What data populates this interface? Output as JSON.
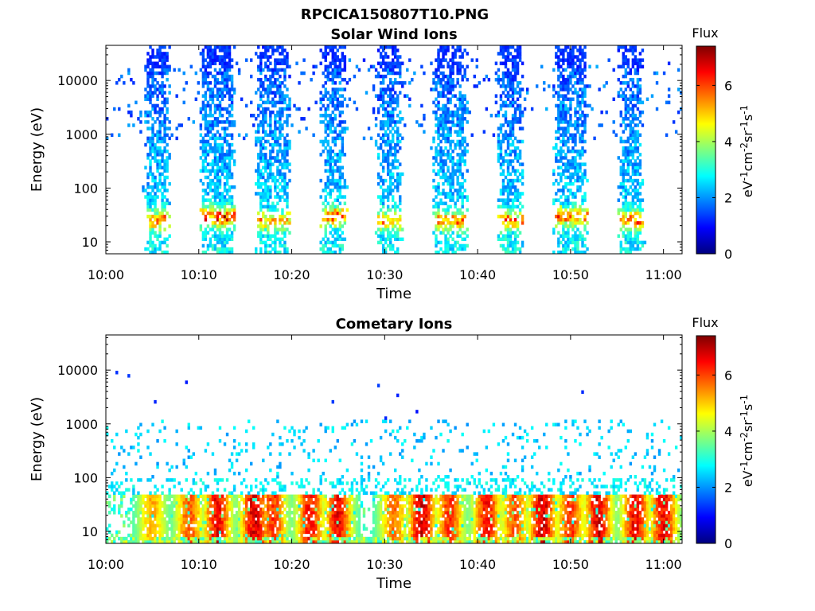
{
  "figure": {
    "title": "RPCICA150807T10.PNG"
  },
  "colormap": {
    "name": "jet",
    "stops": [
      "#00007f",
      "#0000ff",
      "#007fff",
      "#00ffff",
      "#7fff7f",
      "#ffff00",
      "#ff7f00",
      "#ff0000",
      "#7f0000"
    ]
  },
  "chart_data": [
    {
      "type": "heatmap",
      "title": "Solar Wind Ions",
      "xlabel": "Time",
      "ylabel": "Energy (eV)",
      "xlim": [
        "10:00",
        "11:02"
      ],
      "x_ticks": [
        "10:00",
        "10:10",
        "10:20",
        "10:30",
        "10:40",
        "10:50",
        "11:00"
      ],
      "y_scale": "log",
      "ylim": [
        6,
        45000
      ],
      "y_ticks": [
        10,
        100,
        1000,
        10000
      ],
      "y_tick_labels": [
        "10",
        "100",
        "1000",
        "10000"
      ],
      "colorbar": {
        "title": "Flux",
        "label": "eV-1cm-2sr-1s-1",
        "range": [
          0,
          7.4
        ],
        "ticks": [
          0,
          2,
          4,
          6
        ],
        "tick_labels": [
          "0",
          "2",
          "4",
          "6"
        ]
      },
      "bursts": [
        {
          "start": "10:04",
          "end": "10:07",
          "peak_flux": 6.5,
          "peak_energy_eV": 25
        },
        {
          "start": "10:10",
          "end": "10:14",
          "peak_flux": 6.8,
          "peak_energy_eV": 30
        },
        {
          "start": "10:16",
          "end": "10:20",
          "peak_flux": 5.5,
          "peak_energy_eV": 25
        },
        {
          "start": "10:23",
          "end": "10:26",
          "peak_flux": 6.7,
          "peak_energy_eV": 30
        },
        {
          "start": "10:29",
          "end": "10:32",
          "peak_flux": 5.5,
          "peak_energy_eV": 25
        },
        {
          "start": "10:35",
          "end": "10:39",
          "peak_flux": 5.8,
          "peak_energy_eV": 25
        },
        {
          "start": "10:42",
          "end": "10:45",
          "peak_flux": 6.0,
          "peak_energy_eV": 25
        },
        {
          "start": "10:48",
          "end": "10:52",
          "peak_flux": 6.4,
          "peak_energy_eV": 30
        },
        {
          "start": "10:55",
          "end": "10:58",
          "peak_flux": 6.6,
          "peak_energy_eV": 25
        }
      ]
    },
    {
      "type": "heatmap",
      "title": "Cometary Ions",
      "xlabel": "Time",
      "ylabel": "Energy (eV)",
      "xlim": [
        "10:00",
        "11:02"
      ],
      "x_ticks": [
        "10:00",
        "10:10",
        "10:20",
        "10:30",
        "10:40",
        "10:50",
        "11:00"
      ],
      "y_scale": "log",
      "ylim": [
        6,
        45000
      ],
      "y_ticks": [
        10,
        100,
        1000,
        10000
      ],
      "y_tick_labels": [
        "10",
        "100",
        "1000",
        "10000"
      ],
      "colorbar": {
        "title": "Flux",
        "label": "eV-1cm-2sr-1s-1",
        "range": [
          0,
          7.4
        ],
        "ticks": [
          0,
          2,
          4,
          6
        ],
        "tick_labels": [
          "0",
          "2",
          "4",
          "6"
        ]
      },
      "bursts": [
        {
          "center": "10:05",
          "peak_flux": 5.5,
          "peak_energy_eV": 25
        },
        {
          "center": "10:09",
          "peak_flux": 6.2,
          "peak_energy_eV": 20
        },
        {
          "center": "10:12",
          "peak_flux": 7.0,
          "peak_energy_eV": 30
        },
        {
          "center": "10:16",
          "peak_flux": 7.2,
          "peak_energy_eV": 30
        },
        {
          "center": "10:18",
          "peak_flux": 6.5,
          "peak_energy_eV": 25
        },
        {
          "center": "10:22",
          "peak_flux": 6.8,
          "peak_energy_eV": 20
        },
        {
          "center": "10:25",
          "peak_flux": 7.0,
          "peak_energy_eV": 30
        },
        {
          "center": "10:31",
          "peak_flux": 6.0,
          "peak_energy_eV": 20
        },
        {
          "center": "10:34",
          "peak_flux": 7.3,
          "peak_energy_eV": 30
        },
        {
          "center": "10:37",
          "peak_flux": 6.5,
          "peak_energy_eV": 25
        },
        {
          "center": "10:41",
          "peak_flux": 6.8,
          "peak_energy_eV": 20
        },
        {
          "center": "10:44",
          "peak_flux": 6.2,
          "peak_energy_eV": 25
        },
        {
          "center": "10:47",
          "peak_flux": 7.3,
          "peak_energy_eV": 35
        },
        {
          "center": "10:50",
          "peak_flux": 6.5,
          "peak_energy_eV": 25
        },
        {
          "center": "10:53",
          "peak_flux": 7.2,
          "peak_energy_eV": 25
        },
        {
          "center": "10:57",
          "peak_flux": 7.0,
          "peak_energy_eV": 25
        },
        {
          "center": "11:00",
          "peak_flux": 7.0,
          "peak_energy_eV": 25
        }
      ]
    }
  ]
}
